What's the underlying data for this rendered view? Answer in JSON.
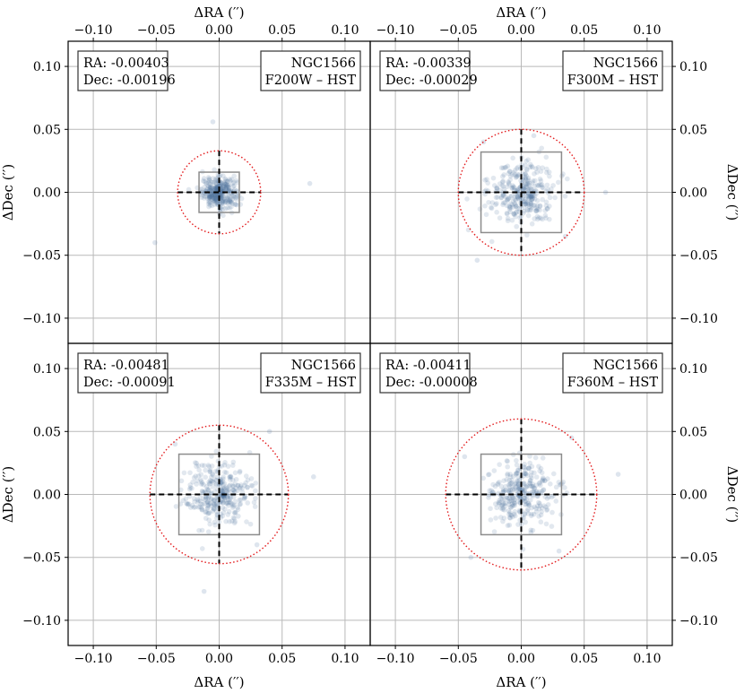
{
  "figure": {
    "x_label": "ΔRA (′′)",
    "y_label": "ΔDec (′′)",
    "x_ticks": [
      "−0.10",
      "−0.05",
      "0.00",
      "0.05",
      "0.10"
    ],
    "y_ticks": [
      "0.10",
      "0.05",
      "0.00",
      "−0.05",
      "−0.10"
    ]
  },
  "chart_data": [
    {
      "type": "scatter",
      "galaxy": "NGC1566",
      "band_label": "F200W – HST",
      "ra_text": "RA: -0.00403",
      "dec_text": "Dec: -0.00196",
      "xlim": [
        -0.12,
        0.12
      ],
      "ylim": [
        -0.12,
        0.12
      ],
      "grid": true,
      "circle_radius": 0.033,
      "cross_halfwidth": 0.033,
      "box_halfwidth": 0.016,
      "spread": 0.006,
      "outliers": [
        [
          -0.005,
          0.056
        ],
        [
          0.014,
          -0.01
        ],
        [
          0.072,
          0.007
        ],
        [
          -0.051,
          -0.04
        ],
        [
          -0.012,
          0.011
        ]
      ],
      "point_color": "#4a6d9e"
    },
    {
      "type": "scatter",
      "galaxy": "NGC1566",
      "band_label": "F300M – HST",
      "ra_text": "RA: -0.00339",
      "dec_text": "Dec: -0.00029",
      "xlim": [
        -0.12,
        0.12
      ],
      "ylim": [
        -0.12,
        0.12
      ],
      "grid": true,
      "circle_radius": 0.05,
      "cross_halfwidth": 0.05,
      "box_halfwidth": 0.032,
      "spread": 0.013,
      "outliers": [
        [
          0.067,
          0.0
        ],
        [
          -0.035,
          -0.054
        ],
        [
          -0.03,
          0.04
        ],
        [
          0.035,
          -0.035
        ],
        [
          0.01,
          0.045
        ]
      ],
      "point_color": "#4a6d9e"
    },
    {
      "type": "scatter",
      "galaxy": "NGC1566",
      "band_label": "F335M – HST",
      "ra_text": "RA: -0.00481",
      "dec_text": "Dec: -0.00091",
      "xlim": [
        -0.12,
        0.12
      ],
      "ylim": [
        -0.12,
        0.12
      ],
      "grid": true,
      "circle_radius": 0.055,
      "cross_halfwidth": 0.055,
      "box_halfwidth": 0.032,
      "spread": 0.013,
      "outliers": [
        [
          -0.012,
          -0.077
        ],
        [
          0.075,
          0.014
        ],
        [
          0.04,
          0.05
        ],
        [
          -0.035,
          0.04
        ],
        [
          0.03,
          -0.04
        ]
      ],
      "point_color": "#4a6d9e"
    },
    {
      "type": "scatter",
      "galaxy": "NGC1566",
      "band_label": "F360M – HST",
      "ra_text": "RA: -0.00411",
      "dec_text": "Dec: -0.00008",
      "xlim": [
        -0.12,
        0.12
      ],
      "ylim": [
        -0.12,
        0.12
      ],
      "grid": true,
      "circle_radius": 0.06,
      "cross_halfwidth": 0.06,
      "box_halfwidth": 0.032,
      "spread": 0.013,
      "outliers": [
        [
          0.077,
          0.016
        ],
        [
          -0.04,
          -0.05
        ],
        [
          0.04,
          0.045
        ],
        [
          -0.045,
          0.03
        ],
        [
          0.03,
          -0.045
        ]
      ],
      "point_color": "#4a6d9e"
    }
  ]
}
